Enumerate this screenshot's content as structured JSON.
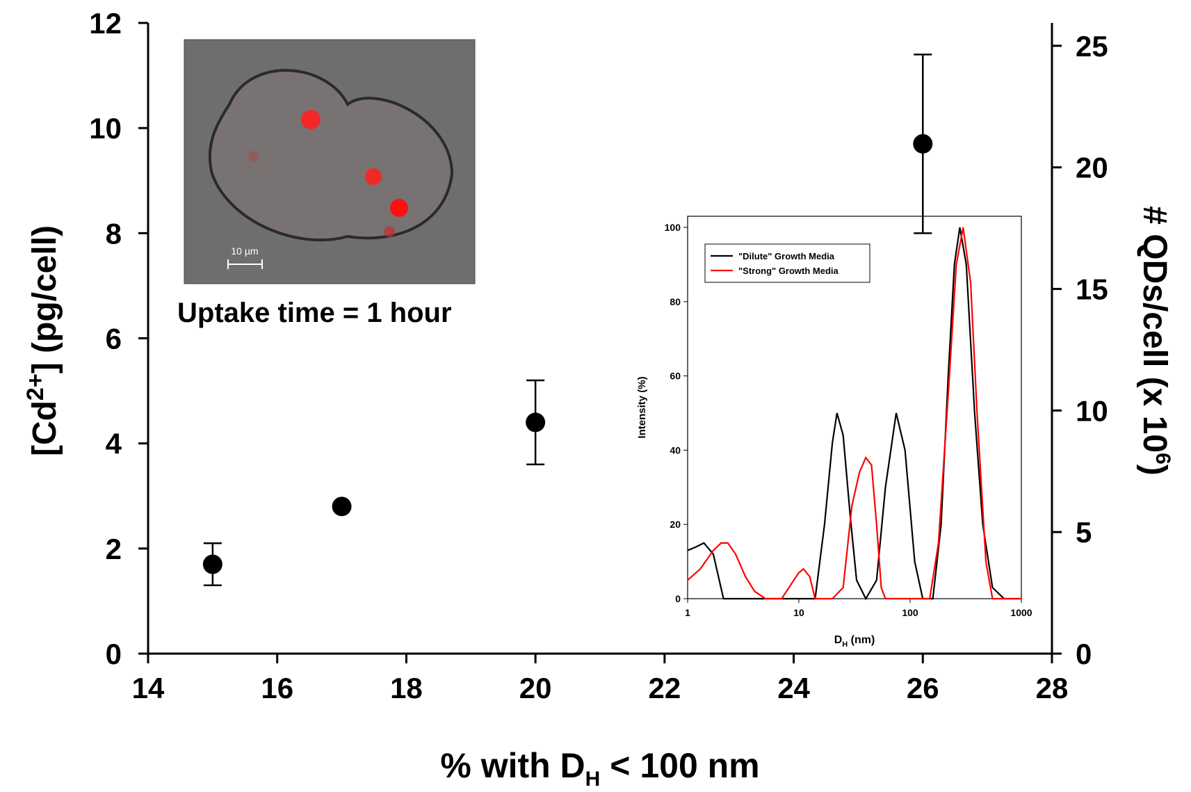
{
  "chart_data": [
    {
      "type": "scatter",
      "x_label": {
        "main": "% with D",
        "sub": "H",
        "rest": " < 100 nm"
      },
      "y_label": {
        "main": "[Cd",
        "sup": "2+",
        "rest": "] (pg/cell)"
      },
      "y2_label": {
        "main": "# QDs/cell (x 10",
        "sup": "6",
        "rest": ")"
      },
      "x": [
        15,
        17,
        20,
        26
      ],
      "values": [
        1.7,
        2.8,
        4.4,
        9.7
      ],
      "errors": [
        0.4,
        null,
        0.8,
        1.7
      ],
      "color": "#000000",
      "xlim": [
        14,
        28
      ],
      "xticks": [
        14,
        16,
        18,
        20,
        22,
        24,
        26,
        28
      ],
      "ylim": [
        0,
        12
      ],
      "yticks": [
        0,
        2,
        4,
        6,
        8,
        10,
        12
      ],
      "y2lim": [
        0,
        25.94
      ],
      "y2ticks": [
        0,
        5,
        10,
        15,
        20,
        25
      ],
      "annotation": "Uptake time = 1 hour",
      "scale_bar": "10 µm"
    },
    {
      "type": "line",
      "x_label": {
        "main": "D",
        "sub": "H",
        "rest": " (nm)"
      },
      "y_label": "Intensity (%)",
      "xlog": true,
      "xlim": [
        1,
        1000
      ],
      "xticks": [
        1,
        10,
        100,
        1000
      ],
      "ylim": [
        0,
        103
      ],
      "yticks": [
        0,
        20,
        40,
        60,
        80,
        100
      ],
      "legend": "upper left",
      "series": [
        {
          "name": "\"Dilute\" Growth Media",
          "color": "#000000",
          "x": [
            1,
            1.2,
            1.4,
            1.7,
            2.1,
            2.5,
            3,
            5,
            10,
            14,
            17,
            20,
            22,
            25,
            29,
            33,
            40,
            50,
            60,
            75,
            90,
            110,
            130,
            160,
            190,
            220,
            250,
            280,
            320,
            380,
            450,
            550,
            700,
            1000
          ],
          "values": [
            13,
            14,
            15,
            12,
            0,
            0,
            0,
            0,
            0,
            0,
            20,
            42,
            50,
            44,
            22,
            5,
            0,
            5,
            30,
            50,
            40,
            10,
            0,
            0,
            20,
            60,
            90,
            100,
            90,
            50,
            20,
            3,
            0,
            0
          ]
        },
        {
          "name": "\"Strong\" Growth Media",
          "color": "#ff0000",
          "x": [
            1,
            1.3,
            1.7,
            2,
            2.3,
            2.7,
            3.3,
            4,
            5,
            7,
            9,
            10,
            11,
            12.5,
            14,
            20,
            25,
            30,
            35,
            40,
            45,
            50,
            55,
            60,
            100,
            150,
            180,
            220,
            260,
            300,
            350,
            400,
            480,
            550,
            700,
            1000
          ],
          "values": [
            5,
            8,
            13,
            15,
            15,
            12,
            6,
            2,
            0,
            0,
            5,
            7,
            8,
            6,
            0,
            0,
            3,
            25,
            34,
            38,
            36,
            20,
            3,
            0,
            0,
            0,
            15,
            55,
            90,
            100,
            85,
            50,
            10,
            0,
            0,
            0
          ]
        }
      ]
    }
  ]
}
